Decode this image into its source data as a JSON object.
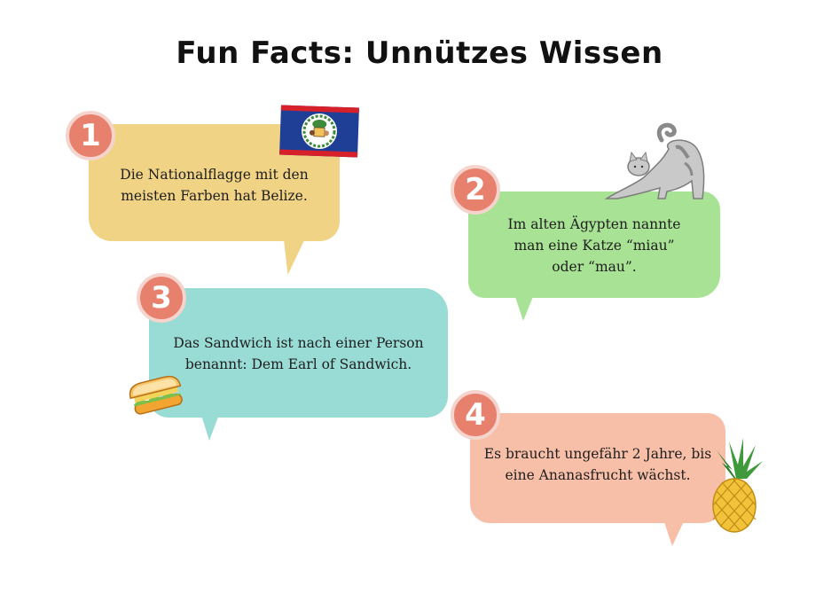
{
  "title": "Fun Facts: Unnützes Wissen",
  "facts": [
    {
      "number": "1",
      "lines": [
        "Die Nationalflagge mit den",
        "meisten Farben hat Belize."
      ],
      "color": "#f0d385",
      "image": "belize-flag"
    },
    {
      "number": "2",
      "lines": [
        "Im alten Ägypten nannte",
        "man eine Katze “miau”",
        "oder “mau”."
      ],
      "color": "#a8e294",
      "image": "cat"
    },
    {
      "number": "3",
      "lines": [
        "Das Sandwich ist nach einer Person",
        "benannt: Dem Earl of Sandwich."
      ],
      "color": "#99dcd5",
      "image": "sandwich"
    },
    {
      "number": "4",
      "lines": [
        "Es braucht ungefähr 2 Jahre, bis",
        "eine Ananasfrucht wächst."
      ],
      "color": "#f8bfa8",
      "image": "pineapple"
    }
  ],
  "badge_color": "#e8806e"
}
